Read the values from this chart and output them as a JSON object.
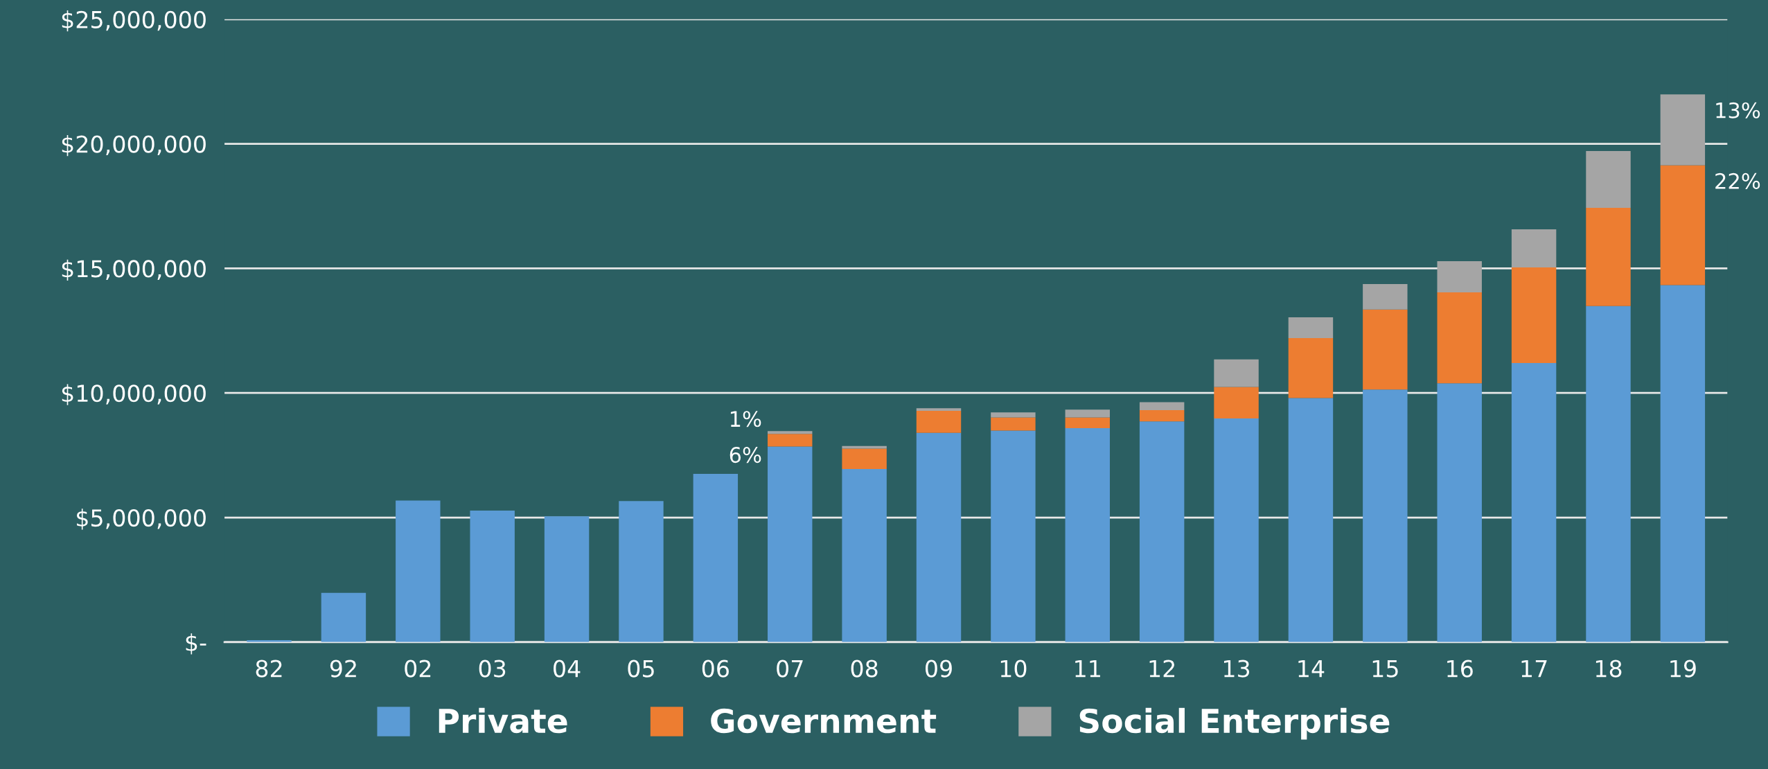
{
  "chart_data": {
    "type": "bar",
    "stacked": true,
    "categories": [
      "82",
      "92",
      "02",
      "03",
      "04",
      "05",
      "06",
      "07",
      "08",
      "09",
      "10",
      "11",
      "12",
      "13",
      "14",
      "15",
      "16",
      "17",
      "18",
      "19"
    ],
    "series": [
      {
        "name": "Private",
        "color": "#5b9bd5",
        "values": [
          80000,
          1980000,
          5680000,
          5280000,
          5050000,
          5660000,
          6750000,
          7850000,
          6950000,
          8400000,
          8490000,
          8590000,
          8860000,
          8980000,
          9800000,
          10140000,
          10390000,
          11200000,
          13490000,
          14330000
        ]
      },
      {
        "name": "Government",
        "color": "#ed7d31",
        "values": [
          null,
          null,
          null,
          null,
          null,
          null,
          null,
          510000,
          820000,
          880000,
          530000,
          430000,
          450000,
          1260000,
          2400000,
          3210000,
          3650000,
          3840000,
          3940000,
          4810000
        ]
      },
      {
        "name": "Social Enterprise",
        "color": "#a5a5a5",
        "values": [
          null,
          null,
          null,
          null,
          null,
          null,
          null,
          110000,
          100000,
          110000,
          200000,
          310000,
          320000,
          1110000,
          840000,
          1020000,
          1250000,
          1530000,
          2280000,
          2840000
        ]
      }
    ],
    "annotations": [
      {
        "text": "1%",
        "x": "07",
        "y": 8470000
      },
      {
        "text": "6%",
        "x": "07",
        "y": 7850000
      },
      {
        "text": "13%",
        "x": "19",
        "y": 21980000
      },
      {
        "text": "22%",
        "x": "19",
        "y": 19140000
      }
    ],
    "ylim": [
      0,
      25000000
    ],
    "yticks": [
      {
        "value": 0,
        "label": "$-"
      },
      {
        "value": 5000000,
        "label": "$5,000,000"
      },
      {
        "value": 10000000,
        "label": "$10,000,000"
      },
      {
        "value": 15000000,
        "label": "$15,000,000"
      },
      {
        "value": 20000000,
        "label": "$20,000,000"
      },
      {
        "value": 25000000,
        "label": "$25,000,000"
      }
    ],
    "grid": "y",
    "legend": "bottom"
  }
}
